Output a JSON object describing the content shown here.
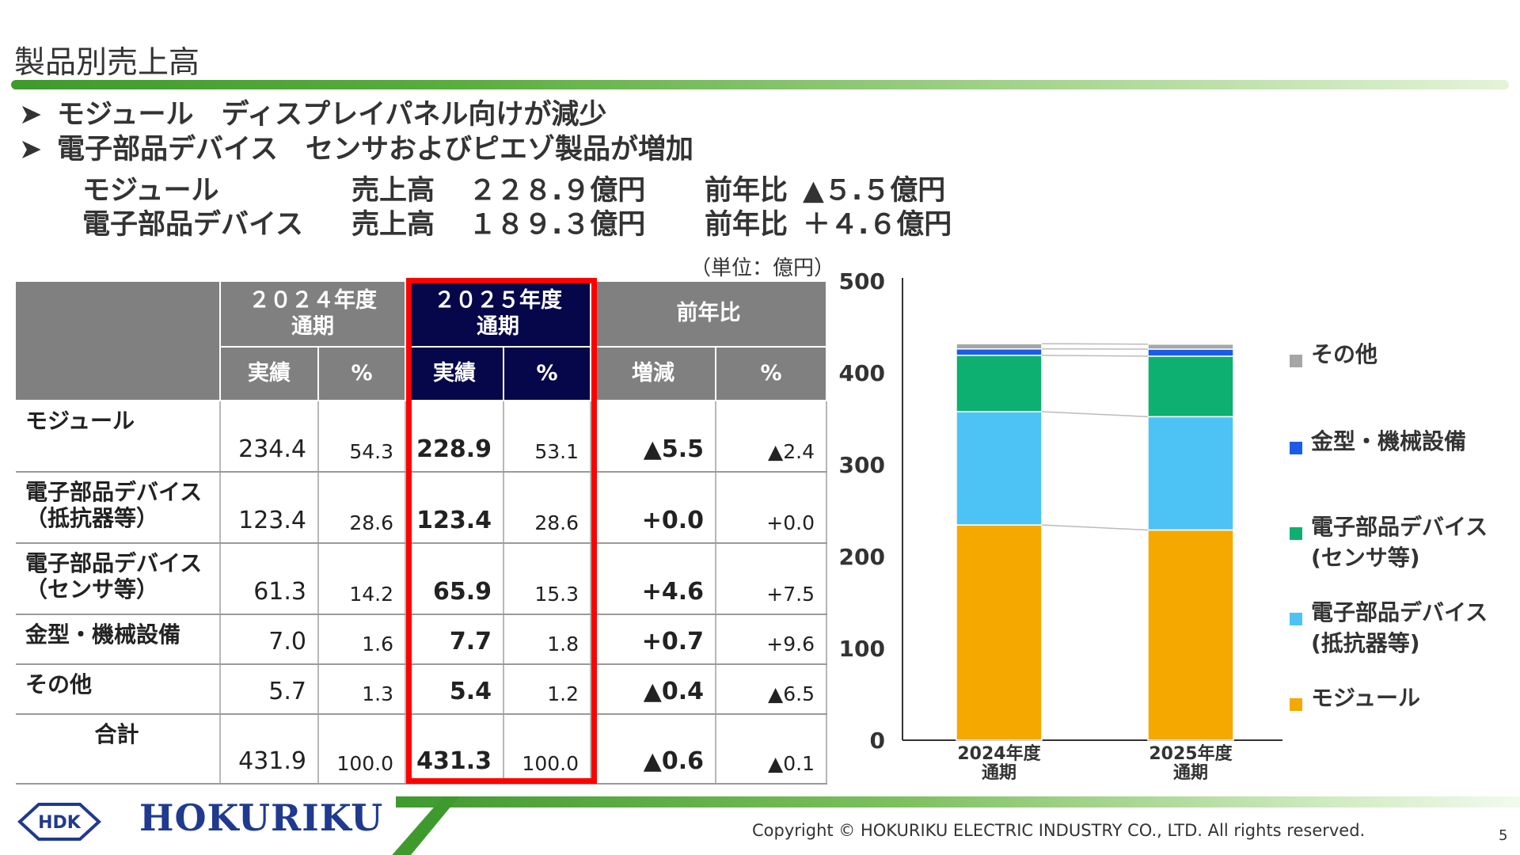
{
  "title": "製品別売上高",
  "bullets": [
    {
      "mark": "➤",
      "text": "モジュール　ディスプレイパネル向けが減少"
    },
    {
      "mark": "➤",
      "text": "電子部品デバイス　センサおよびピエゾ製品が増加"
    }
  ],
  "summary": [
    {
      "name": "モジュール",
      "sales_label": "売上高",
      "sales": "２２８.９億円",
      "yoy_label": "前年比",
      "yoy": "▲５.５億円"
    },
    {
      "name": "電子部品デバイス",
      "sales_label": "売上高",
      "sales": "１８９.３億円",
      "yoy_label": "前年比",
      "yoy": "＋４.６億円"
    }
  ],
  "unit": "（単位：億円）",
  "table": {
    "headers": {
      "fy2024_line1": "２０２４年度",
      "fy2024_line2": "通期",
      "fy2025_line1": "２０２５年度",
      "fy2025_line2": "通期",
      "yoy": "前年比",
      "actual": "実績",
      "pct": "%",
      "change": "増減"
    },
    "rows": [
      {
        "label1": "モジュール",
        "label2": "",
        "a2024": "234.4",
        "p2024": "54.3",
        "a2025": "228.9",
        "p2025": "53.1",
        "chg": "▲5.5",
        "chgp": "▲2.4"
      },
      {
        "label1": "電子部品デバイス",
        "label2": "（抵抗器等）",
        "a2024": "123.4",
        "p2024": "28.6",
        "a2025": "123.4",
        "p2025": "28.6",
        "chg": "+0.0",
        "chgp": "+0.0"
      },
      {
        "label1": "電子部品デバイス",
        "label2": "（センサ等）",
        "a2024": "61.3",
        "p2024": "14.2",
        "a2025": "65.9",
        "p2025": "15.3",
        "chg": "+4.6",
        "chgp": "+7.5"
      },
      {
        "label1": "金型・機械設備",
        "label2": "",
        "a2024": "7.0",
        "p2024": "1.6",
        "a2025": "7.7",
        "p2025": "1.8",
        "chg": "+0.7",
        "chgp": "+9.6"
      },
      {
        "label1": "その他",
        "label2": "",
        "a2024": "5.7",
        "p2024": "1.3",
        "a2025": "5.4",
        "p2025": "1.2",
        "chg": "▲0.4",
        "chgp": "▲6.5"
      },
      {
        "label1": "合計",
        "label2": "",
        "a2024": "431.9",
        "p2024": "100.0",
        "a2025": "431.3",
        "p2025": "100.0",
        "chg": "▲0.6",
        "chgp": "▲0.1"
      }
    ]
  },
  "chart_data": {
    "type": "bar",
    "stacked": true,
    "categories": [
      [
        "2024年度",
        "通期"
      ],
      [
        "2025年度",
        "通期"
      ]
    ],
    "series": [
      {
        "name": "モジュール",
        "color": "#f5a800",
        "values": [
          234.4,
          228.9
        ]
      },
      {
        "name": "電子部品デバイス(抵抗器等)",
        "legend_lines": [
          "電子部品デバイス",
          "(抵抗器等)"
        ],
        "color": "#4dc3f5",
        "values": [
          123.4,
          123.4
        ]
      },
      {
        "name": "電子部品デバイス(センサ等)",
        "legend_lines": [
          "電子部品デバイス",
          "(センサ等)"
        ],
        "color": "#0db070",
        "values": [
          61.3,
          65.9
        ]
      },
      {
        "name": "金型・機械設備",
        "color": "#1a5ce6",
        "values": [
          7.0,
          7.7
        ]
      },
      {
        "name": "その他",
        "color": "#a6a6a6",
        "values": [
          5.7,
          5.4
        ]
      }
    ],
    "ylim": [
      0,
      500
    ],
    "yticks": [
      0,
      100,
      200,
      300,
      400,
      500
    ],
    "grid": false,
    "legend_position": "right"
  },
  "footer": {
    "logo_mark": "HDK",
    "logo_text": "HOKURIKU",
    "copyright": "Copyright © HOKURIKU ELECTRIC INDUSTRY CO., LTD. All rights reserved.",
    "page": "5"
  }
}
